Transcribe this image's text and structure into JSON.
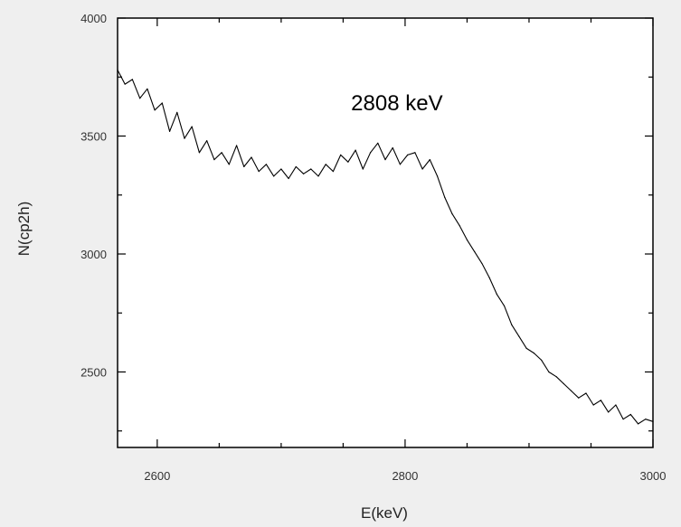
{
  "chart_data": {
    "type": "line",
    "xlabel": "E(keV)",
    "ylabel": "N(cp2h)",
    "xlim": [
      2568,
      3000
    ],
    "ylim": [
      2180,
      4000
    ],
    "xticks": [
      2600,
      2800,
      3000
    ],
    "yticks": [
      2500,
      3000,
      3500,
      4000
    ],
    "grid": false,
    "annotations": [
      {
        "text": "2808 keV",
        "x": 2808,
        "y": 3610
      }
    ],
    "series": [
      {
        "x": [
          2568,
          2574,
          2580,
          2586,
          2592,
          2598,
          2604,
          2610,
          2616,
          2622,
          2628,
          2634,
          2640,
          2646,
          2652,
          2658,
          2664,
          2670,
          2676,
          2682,
          2688,
          2694,
          2700,
          2706,
          2712,
          2718,
          2724,
          2730,
          2736,
          2742,
          2748,
          2754,
          2760,
          2766,
          2772,
          2778,
          2784,
          2790,
          2796,
          2802,
          2808,
          2814,
          2820,
          2826,
          2832,
          2838,
          2844,
          2850,
          2856,
          2862,
          2868,
          2874,
          2880,
          2886,
          2892,
          2898,
          2904,
          2910,
          2916,
          2922,
          2928,
          2934,
          2940,
          2946,
          2952,
          2958,
          2964,
          2970,
          2976,
          2982,
          2988,
          2994,
          3000
        ],
        "y": [
          3780,
          3720,
          3740,
          3660,
          3700,
          3610,
          3640,
          3520,
          3600,
          3490,
          3540,
          3430,
          3480,
          3400,
          3430,
          3380,
          3460,
          3370,
          3410,
          3350,
          3380,
          3330,
          3360,
          3320,
          3370,
          3340,
          3360,
          3330,
          3380,
          3350,
          3420,
          3390,
          3440,
          3360,
          3430,
          3470,
          3400,
          3450,
          3380,
          3420,
          3430,
          3360,
          3400,
          3330,
          3240,
          3170,
          3120,
          3060,
          3010,
          2960,
          2900,
          2830,
          2780,
          2700,
          2650,
          2600,
          2580,
          2550,
          2500,
          2480,
          2450,
          2420,
          2390,
          2410,
          2360,
          2380,
          2330,
          2360,
          2300,
          2320,
          2280,
          2300,
          2290
        ]
      }
    ]
  }
}
